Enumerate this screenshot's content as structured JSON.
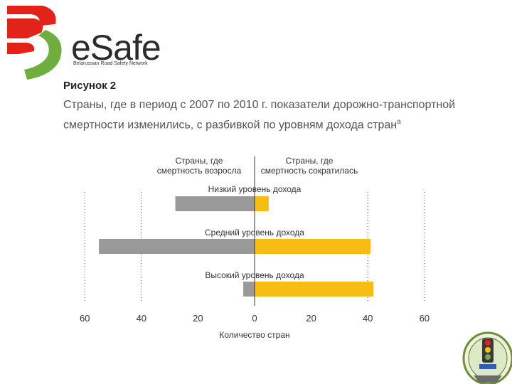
{
  "logo": {
    "name": "eSafe",
    "subtitle": "Belarussian Road Safety Network",
    "colors": {
      "red": "#e2231a",
      "green": "#6fae3e",
      "text": "#2b2b2b"
    }
  },
  "figure": {
    "label": "Рисунок 2",
    "title": "Страны, где в период с 2007 по 2010 г. показатели дорожно-транспортной смертности изменились, с разбивкой по уровням дохода стран",
    "title_marker": "a"
  },
  "chart_data": {
    "type": "bar",
    "orientation": "horizontal-diverging",
    "header_left": "Страны, где смертность возросла",
    "header_right": "Страны, где смертность сократилась",
    "categories": [
      "Низкий уровень дохода",
      "Средний уровень дохода",
      "Высокий уровень дохода"
    ],
    "series": [
      {
        "values": [
          28,
          55,
          4
        ],
        "color": "#999999"
      },
      {
        "values": [
          5,
          41,
          42
        ],
        "color": "#f7bd14"
      }
    ],
    "xlabel": "Количество стран",
    "xticks": [
      "60",
      "40",
      "20",
      "0",
      "20",
      "40",
      "60"
    ],
    "xlim": [
      -60,
      60
    ],
    "grid": "dotted lines at ±40 and ±60"
  }
}
